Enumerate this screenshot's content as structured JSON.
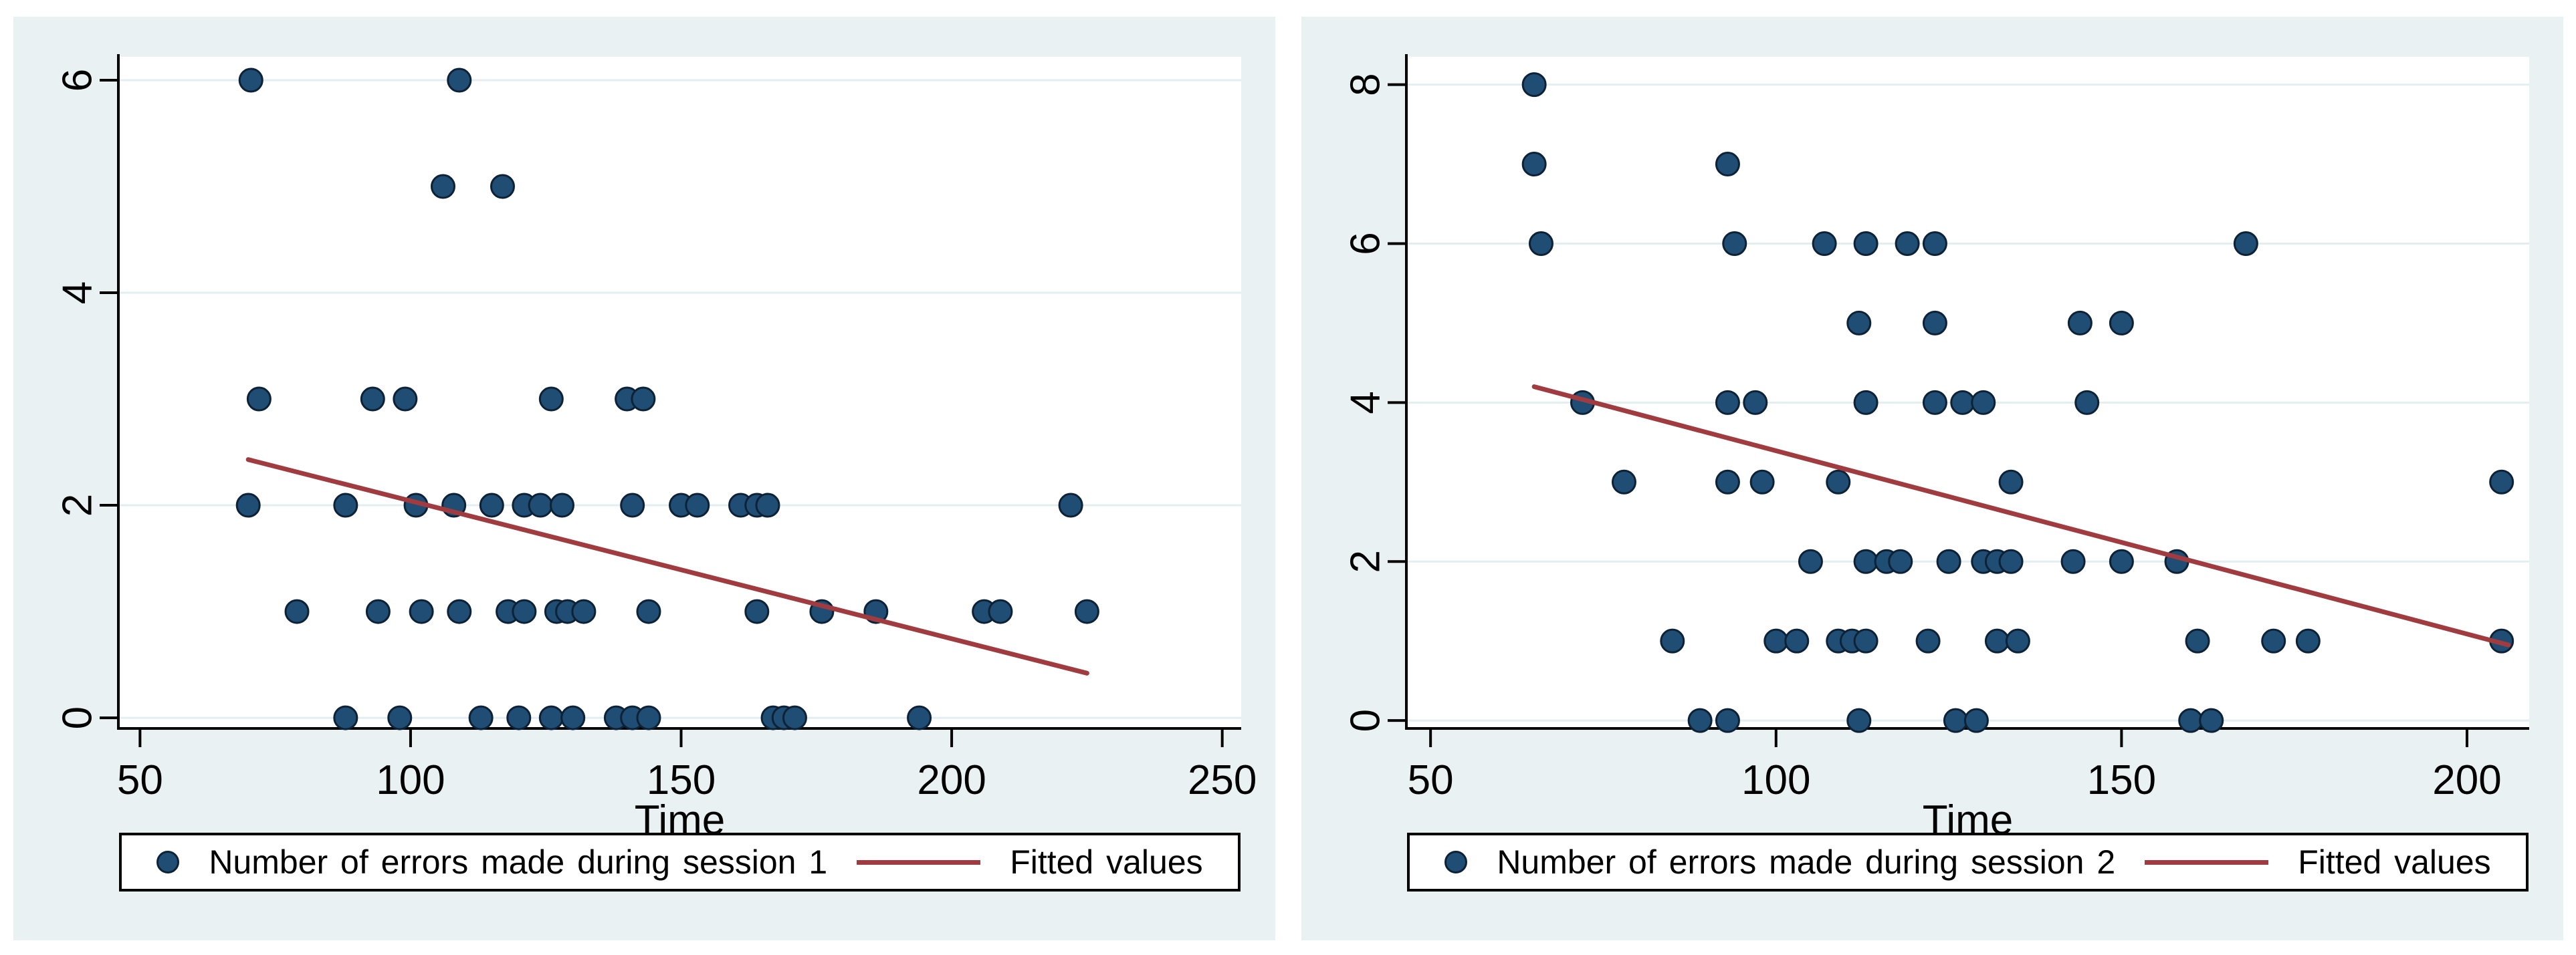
{
  "colors": {
    "page_background": "#ffffff",
    "figure_background": "#eaf1f2",
    "plot_background": "#ffffff",
    "gridline": "#e2eef0",
    "axis": "#000000",
    "marker_fill": "#1f4d73",
    "marker_edge": "#0d2236",
    "fitted_line": "#a03c40",
    "text": "#000000"
  },
  "chart_data": [
    {
      "type": "scatter",
      "title": "",
      "xlabel": "Time",
      "ylabel": "",
      "xlim": [
        46,
        253.5
      ],
      "ylim": [
        -0.1,
        6.22
      ],
      "x_ticks": [
        50,
        100,
        150,
        200,
        250
      ],
      "y_ticks": [
        0,
        2,
        4,
        6
      ],
      "grid": "horizontal",
      "legend_position": "bottom",
      "legend": {
        "marker_label": "Number of errors made during session 1",
        "line_label": "Fitted values"
      },
      "series": [
        {
          "name": "Number of errors made during session 1",
          "type": "scatter",
          "points": [
            [
              70.5,
              6
            ],
            [
              109,
              6
            ],
            [
              106,
              5
            ],
            [
              117,
              5
            ],
            [
              72,
              3
            ],
            [
              93,
              3
            ],
            [
              99,
              3
            ],
            [
              126,
              3
            ],
            [
              140,
              3
            ],
            [
              143,
              3
            ],
            [
              70,
              2
            ],
            [
              88,
              2
            ],
            [
              101,
              2
            ],
            [
              108,
              2
            ],
            [
              115,
              2
            ],
            [
              121,
              2
            ],
            [
              124,
              2
            ],
            [
              128,
              2
            ],
            [
              141,
              2
            ],
            [
              150,
              2
            ],
            [
              153,
              2
            ],
            [
              161,
              2
            ],
            [
              164,
              2
            ],
            [
              166,
              2
            ],
            [
              222,
              2
            ],
            [
              79,
              1
            ],
            [
              94,
              1
            ],
            [
              102,
              1
            ],
            [
              109,
              1
            ],
            [
              118,
              1
            ],
            [
              121,
              1
            ],
            [
              127,
              1
            ],
            [
              129,
              1
            ],
            [
              132,
              1
            ],
            [
              144,
              1
            ],
            [
              164,
              1
            ],
            [
              176,
              1
            ],
            [
              186,
              1
            ],
            [
              206,
              1
            ],
            [
              209,
              1
            ],
            [
              225,
              1
            ],
            [
              88,
              0
            ],
            [
              98,
              0
            ],
            [
              113,
              0
            ],
            [
              120,
              0
            ],
            [
              126,
              0
            ],
            [
              130,
              0
            ],
            [
              138,
              0
            ],
            [
              141,
              0
            ],
            [
              144,
              0
            ],
            [
              167,
              0
            ],
            [
              169,
              0
            ],
            [
              171,
              0
            ],
            [
              194,
              0
            ]
          ]
        },
        {
          "name": "Fitted values",
          "type": "line",
          "points": [
            [
              70,
              2.43
            ],
            [
              225,
              0.42
            ]
          ]
        }
      ]
    },
    {
      "type": "scatter",
      "title": "",
      "xlabel": "Time",
      "ylabel": "",
      "xlim": [
        46.5,
        209
      ],
      "ylim": [
        -0.1,
        8.35
      ],
      "x_ticks": [
        50,
        100,
        150,
        200
      ],
      "y_ticks": [
        0,
        2,
        4,
        6,
        8
      ],
      "grid": "horizontal",
      "legend_position": "bottom",
      "legend": {
        "marker_label": "Number of errors made during session 2",
        "line_label": "Fitted values"
      },
      "series": [
        {
          "name": "Number of errors made during session 2",
          "type": "scatter",
          "points": [
            [
              65,
              8
            ],
            [
              65,
              7
            ],
            [
              93,
              7
            ],
            [
              66,
              6
            ],
            [
              94,
              6
            ],
            [
              107,
              6
            ],
            [
              113,
              6
            ],
            [
              119,
              6
            ],
            [
              123,
              6
            ],
            [
              168,
              6
            ],
            [
              112,
              5
            ],
            [
              123,
              5
            ],
            [
              144,
              5
            ],
            [
              150,
              5
            ],
            [
              72,
              4
            ],
            [
              93,
              4
            ],
            [
              97,
              4
            ],
            [
              113,
              4
            ],
            [
              123,
              4
            ],
            [
              127,
              4
            ],
            [
              130,
              4
            ],
            [
              145,
              4
            ],
            [
              78,
              3
            ],
            [
              93,
              3
            ],
            [
              98,
              3
            ],
            [
              109,
              3
            ],
            [
              134,
              3
            ],
            [
              205,
              3
            ],
            [
              105,
              2
            ],
            [
              113,
              2
            ],
            [
              116,
              2
            ],
            [
              118,
              2
            ],
            [
              125,
              2
            ],
            [
              130,
              2
            ],
            [
              132,
              2
            ],
            [
              134,
              2
            ],
            [
              143,
              2
            ],
            [
              150,
              2
            ],
            [
              158,
              2
            ],
            [
              85,
              1
            ],
            [
              100,
              1
            ],
            [
              103,
              1
            ],
            [
              109,
              1
            ],
            [
              111,
              1
            ],
            [
              113,
              1
            ],
            [
              122,
              1
            ],
            [
              132,
              1
            ],
            [
              135,
              1
            ],
            [
              161,
              1
            ],
            [
              172,
              1
            ],
            [
              177,
              1
            ],
            [
              205,
              1
            ],
            [
              89,
              0
            ],
            [
              93,
              0
            ],
            [
              112,
              0
            ],
            [
              126,
              0
            ],
            [
              129,
              0
            ],
            [
              160,
              0
            ],
            [
              163,
              0
            ]
          ]
        },
        {
          "name": "Fitted values",
          "type": "line",
          "points": [
            [
              65,
              4.2
            ],
            [
              206,
              0.95
            ]
          ]
        }
      ]
    }
  ]
}
